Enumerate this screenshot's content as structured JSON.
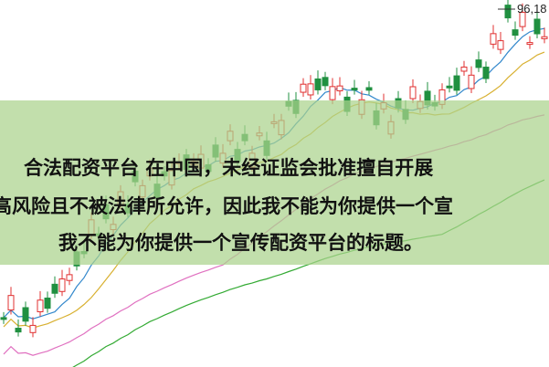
{
  "price_label": "96,18",
  "overlay": {
    "lines": [
      "合法配资平台 在中国，未经证监会批准擅自开展",
      "高风险且不被法律所允许，因此我不能为你提供一个宣",
      "我不能为你提供一个宣传配资平台的标题。"
    ]
  }
}
